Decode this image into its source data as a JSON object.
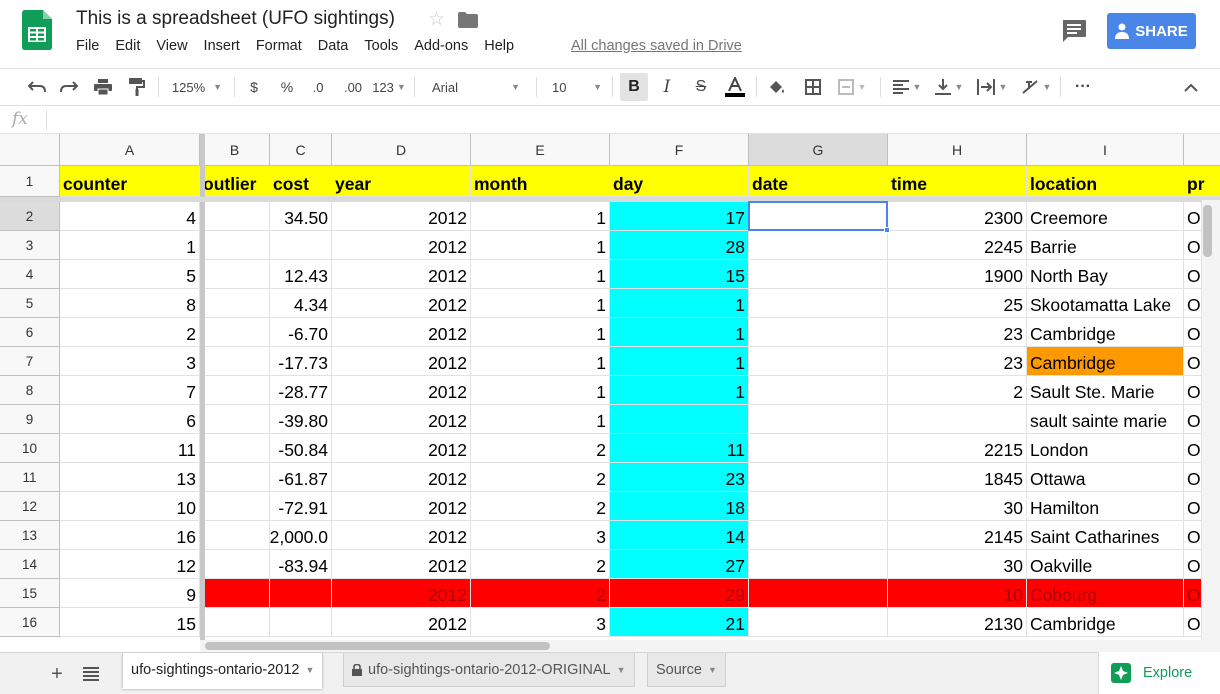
{
  "app": {
    "title": "This is a spreadsheet (UFO sightings)",
    "saved_status": "All changes saved in Drive",
    "share_label": "SHARE",
    "menu": [
      "File",
      "Edit",
      "View",
      "Insert",
      "Format",
      "Data",
      "Tools",
      "Add-ons",
      "Help"
    ]
  },
  "toolbar": {
    "zoom": "125%",
    "currency": "$",
    "percent": "%",
    "dec_less": ".0",
    "dec_more": ".00",
    "more_formats": "123",
    "font": "Arial",
    "font_size": "10",
    "more": "···"
  },
  "formula_bar": {
    "fx_label": "fx",
    "value": ""
  },
  "colors": {
    "accent": "#4a86e8",
    "header_yellow": "#ffff00",
    "day_cyan": "#00ffff",
    "highlight_orange": "#ff9900",
    "error_red": "#ff0000",
    "explore_green": "#0f9d58"
  },
  "grid": {
    "columns": [
      "A",
      "B",
      "C",
      "D",
      "E",
      "F",
      "G",
      "H",
      "I"
    ],
    "selected_column": "G",
    "row_numbers": [
      "1",
      "2",
      "3",
      "4",
      "5",
      "6",
      "7",
      "8",
      "9",
      "10",
      "11",
      "12",
      "13",
      "14",
      "15",
      "16"
    ],
    "selected_row": "2",
    "header_row": [
      "counter",
      "outlier",
      "cost",
      "year",
      "month",
      "day",
      "date",
      "time",
      "location",
      "pr"
    ],
    "rows": [
      [
        "4",
        "",
        "34.50",
        "2012",
        "1",
        "17",
        "",
        "2300",
        "Creemore",
        "O"
      ],
      [
        "1",
        "",
        "",
        "2012",
        "1",
        "28",
        "",
        "2245",
        "Barrie",
        "O"
      ],
      [
        "5",
        "",
        "12.43",
        "2012",
        "1",
        "15",
        "",
        "1900",
        "North Bay",
        "O"
      ],
      [
        "8",
        "",
        "4.34",
        "2012",
        "1",
        "1",
        "",
        "25",
        "Skootamatta Lake",
        "O"
      ],
      [
        "2",
        "",
        "-6.70",
        "2012",
        "1",
        "1",
        "",
        "23",
        "Cambridge",
        "O"
      ],
      [
        "3",
        "",
        "-17.73",
        "2012",
        "1",
        "1",
        "",
        "23",
        "Cambridge",
        "O"
      ],
      [
        "7",
        "",
        "-28.77",
        "2012",
        "1",
        "1",
        "",
        "2",
        "Sault Ste. Marie",
        "O"
      ],
      [
        "6",
        "",
        "-39.80",
        "2012",
        "1",
        "",
        "",
        "",
        "sault sainte marie",
        "O"
      ],
      [
        "11",
        "",
        "-50.84",
        "2012",
        "2",
        "11",
        "",
        "2215",
        "London",
        "O"
      ],
      [
        "13",
        "",
        "-61.87",
        "2012",
        "2",
        "23",
        "",
        "1845",
        "Ottawa",
        "O"
      ],
      [
        "10",
        "",
        "-72.91",
        "2012",
        "2",
        "18",
        "",
        "30",
        "Hamilton",
        "O"
      ],
      [
        "16",
        "",
        "2,000.0",
        "2012",
        "3",
        "14",
        "",
        "2145",
        "Saint Catharines",
        "O"
      ],
      [
        "12",
        "",
        "-83.94",
        "2012",
        "2",
        "27",
        "",
        "30",
        "Oakville",
        "O"
      ],
      [
        "9",
        "",
        "",
        "2012",
        "2",
        "29",
        "",
        "10",
        "Cobourg",
        "O"
      ],
      [
        "15",
        "",
        "",
        "2012",
        "3",
        "21",
        "",
        "2130",
        "Cambridge",
        "O"
      ]
    ]
  },
  "sheets": {
    "tabs": [
      "ufo-sightings-ontario-2012",
      "ufo-sightings-ontario-2012-ORIGINAL",
      "Source"
    ],
    "active": "ufo-sightings-ontario-2012"
  },
  "explore_label": "Explore"
}
